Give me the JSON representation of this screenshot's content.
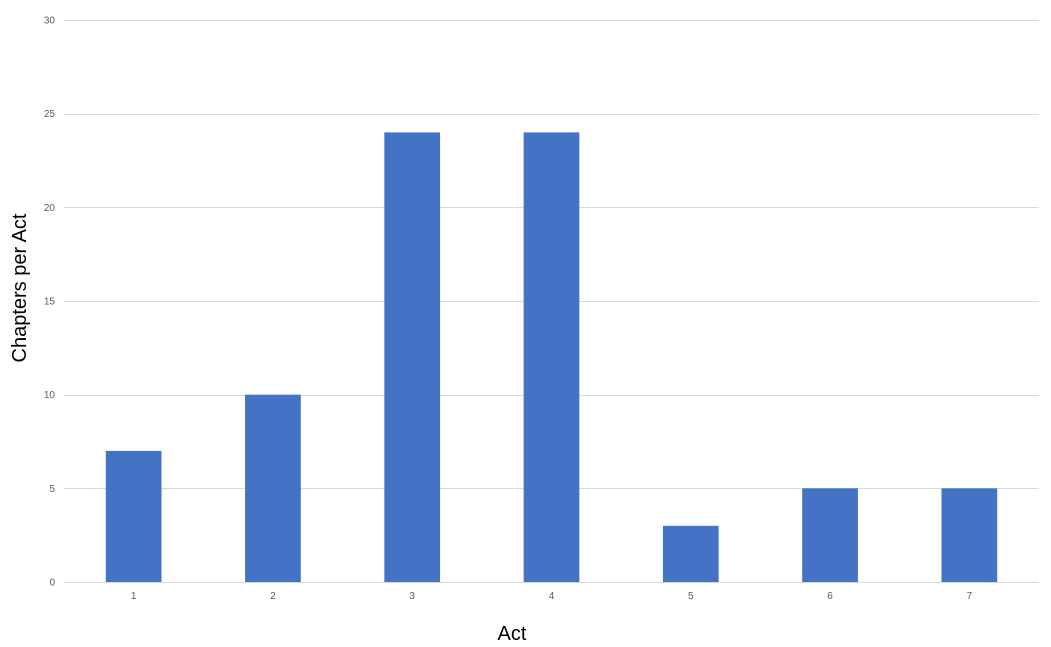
{
  "chart_data": {
    "type": "bar",
    "title": "",
    "xlabel": "Act",
    "ylabel": "Chapters per Act",
    "categories": [
      "1",
      "2",
      "3",
      "4",
      "5",
      "6",
      "7"
    ],
    "values": [
      7,
      10,
      24,
      24,
      3,
      5,
      5
    ],
    "ylim": [
      0,
      30
    ],
    "yticks": [
      0,
      5,
      10,
      15,
      20,
      25,
      30
    ],
    "grid": true,
    "legend": "none",
    "bar_color": "#4472c4",
    "grid_color": "#d9d9d9",
    "tick_color": "#595959"
  }
}
